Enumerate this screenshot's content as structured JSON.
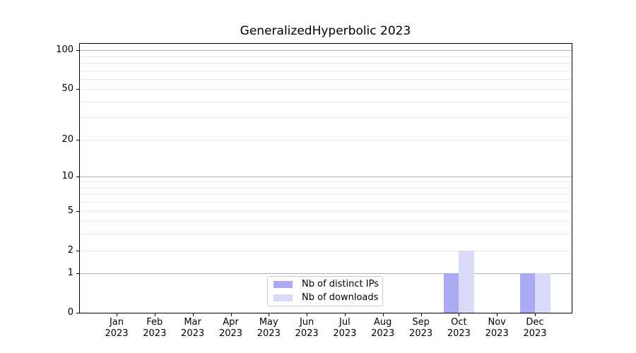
{
  "chart_data": {
    "type": "bar",
    "title": "GeneralizedHyperbolic 2023",
    "categories": [
      "Jan",
      "Feb",
      "Mar",
      "Apr",
      "May",
      "Jun",
      "Jul",
      "Aug",
      "Sep",
      "Oct",
      "Nov",
      "Dec"
    ],
    "category_year": "2023",
    "series": [
      {
        "name": "Nb of distinct IPs",
        "color": "#a9a9f4",
        "values": [
          0,
          0,
          0,
          0,
          0,
          0,
          0,
          0,
          0,
          1,
          0,
          1
        ]
      },
      {
        "name": "Nb of downloads",
        "color": "#d9d9f8",
        "values": [
          0,
          0,
          0,
          0,
          0,
          0,
          0,
          0,
          0,
          2,
          0,
          1
        ]
      }
    ],
    "xlabel": "",
    "ylabel": "",
    "yscale": "log10(1+y)",
    "yticks": [
      0,
      1,
      2,
      5,
      10,
      20,
      50,
      100
    ],
    "major_gridlines": [
      1,
      10,
      100
    ],
    "minor_gridlines": [
      2,
      3,
      4,
      5,
      6,
      7,
      8,
      9,
      20,
      30,
      40,
      50,
      60,
      70,
      80,
      90
    ],
    "ylim": [
      0,
      112
    ],
    "grid": true,
    "legend_position": "lower center",
    "colors": {
      "spine": "#000000",
      "major_grid": "#b3b3b3",
      "minor_grid": "#e8e8e8",
      "background": "#ffffff",
      "legend_border": "#cccccc"
    }
  }
}
